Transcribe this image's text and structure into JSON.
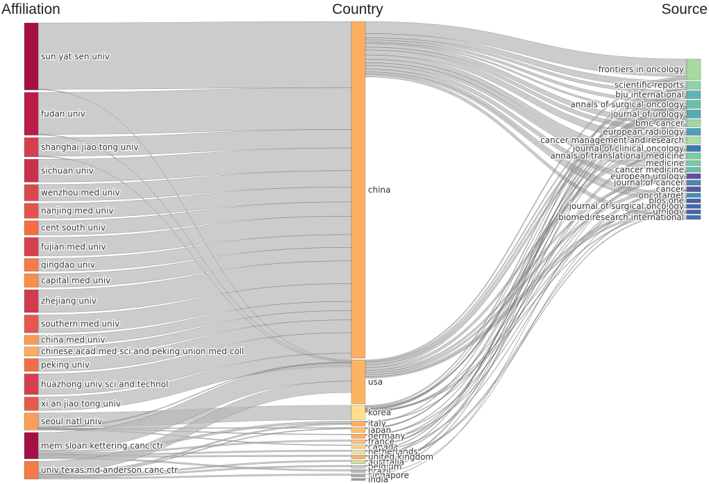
{
  "chart_data": {
    "type": "sankey",
    "columns": [
      "Affiliation",
      "Country",
      "Source"
    ],
    "link_color": "#c4c4c4",
    "affiliations": [
      {
        "name": "sun yat sen univ",
        "value": 94,
        "color": "#a50f44"
      },
      {
        "name": "fudan univ",
        "value": 60,
        "color": "#ba1b48"
      },
      {
        "name": "shanghai jiao tong univ",
        "value": 27,
        "color": "#d53e4f"
      },
      {
        "name": "sichuan univ",
        "value": 32,
        "color": "#c9304a"
      },
      {
        "name": "wenzhou med univ",
        "value": 23,
        "color": "#dc474c"
      },
      {
        "name": "nanjing med univ",
        "value": 21,
        "color": "#e0544c"
      },
      {
        "name": "cent south univ",
        "value": 20,
        "color": "#f46d43"
      },
      {
        "name": "fujian med univ",
        "value": 26,
        "color": "#d8404e"
      },
      {
        "name": "qingdao univ",
        "value": 18,
        "color": "#f67b47"
      },
      {
        "name": "capital med univ",
        "value": 19,
        "color": "#f88e4c"
      },
      {
        "name": "zhejiang univ",
        "value": 32,
        "color": "#d23a4e"
      },
      {
        "name": "southern med univ",
        "value": 25,
        "color": "#e55750"
      },
      {
        "name": "china med univ",
        "value": 13,
        "color": "#fa9b58"
      },
      {
        "name": "chinese acad med sci and peking union med coll",
        "value": 13,
        "color": "#fbae61"
      },
      {
        "name": "peking univ",
        "value": 18,
        "color": "#f46d43"
      },
      {
        "name": "huazhong univ sci and technol",
        "value": 29,
        "color": "#d53e4f"
      },
      {
        "name": "xi an jiao tong univ",
        "value": 19,
        "color": "#ea5a48"
      },
      {
        "name": "seoul natl univ",
        "value": 24,
        "color": "#fc9e5a"
      },
      {
        "name": "mem sloan kettering canc ctr",
        "value": 37,
        "color": "#a50f44"
      },
      {
        "name": "univ texas md anderson canc ctr",
        "value": 25,
        "color": "#f57a45"
      }
    ],
    "countries": [
      {
        "name": "china",
        "value": 474,
        "color": "#fdae61"
      },
      {
        "name": "usa",
        "value": 62,
        "color": "#fdb462"
      },
      {
        "name": "korea",
        "value": 20,
        "color": "#fee08b"
      },
      {
        "name": "italy",
        "value": 7,
        "color": "#fdae61"
      },
      {
        "name": "japan",
        "value": 7,
        "color": "#fdbf6f"
      },
      {
        "name": "germany",
        "value": 6,
        "color": "#fdae61"
      },
      {
        "name": "france",
        "value": 5,
        "color": "#fec173"
      },
      {
        "name": "canada",
        "value": 5,
        "color": "#fdd08a"
      },
      {
        "name": "netherlands",
        "value": 5,
        "color": "#e6e3a0"
      },
      {
        "name": "united kingdom",
        "value": 5,
        "color": "#fdae61"
      },
      {
        "name": "australia",
        "value": 5,
        "color": "#d9d9a0"
      },
      {
        "name": "belgium",
        "value": 4,
        "color": "#c8c8c8"
      },
      {
        "name": "brazil",
        "value": 4,
        "color": "#b5b5b5"
      },
      {
        "name": "singapore",
        "value": 4,
        "color": "#aaaaaa"
      },
      {
        "name": "india",
        "value": 3,
        "color": "#9e9e9e"
      }
    ],
    "sources": [
      {
        "name": "frontiers in oncology",
        "value": 20,
        "color": "#a6dba0"
      },
      {
        "name": "scientific reports",
        "value": 8,
        "color": "#8fd4a4"
      },
      {
        "name": "bju international",
        "value": 8,
        "color": "#5fb4b6"
      },
      {
        "name": "annals of surgical oncology",
        "value": 8,
        "color": "#66c2a5"
      },
      {
        "name": "journal of urology",
        "value": 8,
        "color": "#5aa9b8"
      },
      {
        "name": "bmc cancer",
        "value": 7,
        "color": "#9fd8a4"
      },
      {
        "name": "european radiology",
        "value": 7,
        "color": "#4f9dbb"
      },
      {
        "name": "cancer management and research",
        "value": 7,
        "color": "#abdda4"
      },
      {
        "name": "journal of clinical oncology",
        "value": 6,
        "color": "#3f78b5"
      },
      {
        "name": "annals of translational medicine",
        "value": 6,
        "color": "#7ccba4"
      },
      {
        "name": "medicine",
        "value": 5,
        "color": "#78c8a8"
      },
      {
        "name": "cancer medicine",
        "value": 5,
        "color": "#6dbda9"
      },
      {
        "name": "european urology",
        "value": 5,
        "color": "#5e4fa2"
      },
      {
        "name": "journal of cancer",
        "value": 5,
        "color": "#4a86b6"
      },
      {
        "name": "cancer",
        "value": 5,
        "color": "#5a57a2"
      },
      {
        "name": "oncotarget",
        "value": 4,
        "color": "#3f8fb8"
      },
      {
        "name": "plos one",
        "value": 4,
        "color": "#4f5fa6"
      },
      {
        "name": "journal of surgical oncology",
        "value": 4,
        "color": "#3b6bb0"
      },
      {
        "name": "urology",
        "value": 4,
        "color": "#4c63a8"
      },
      {
        "name": "biomed research international",
        "value": 4,
        "color": "#3c74b2"
      }
    ],
    "links_affiliation_country": [
      {
        "source": "sun yat sen univ",
        "target": "china",
        "value": 93
      },
      {
        "source": "sun yat sen univ",
        "target": "usa",
        "value": 1
      },
      {
        "source": "fudan univ",
        "target": "china",
        "value": 59
      },
      {
        "source": "fudan univ",
        "target": "usa",
        "value": 1
      },
      {
        "source": "shanghai jiao tong univ",
        "target": "china",
        "value": 26
      },
      {
        "source": "shanghai jiao tong univ",
        "target": "usa",
        "value": 1
      },
      {
        "source": "sichuan univ",
        "target": "china",
        "value": 32
      },
      {
        "source": "wenzhou med univ",
        "target": "china",
        "value": 23
      },
      {
        "source": "nanjing med univ",
        "target": "china",
        "value": 21
      },
      {
        "source": "cent south univ",
        "target": "china",
        "value": 20
      },
      {
        "source": "fujian med univ",
        "target": "china",
        "value": 26
      },
      {
        "source": "qingdao univ",
        "target": "china",
        "value": 18
      },
      {
        "source": "capital med univ",
        "target": "china",
        "value": 19
      },
      {
        "source": "zhejiang univ",
        "target": "china",
        "value": 32
      },
      {
        "source": "southern med univ",
        "target": "china",
        "value": 25
      },
      {
        "source": "china med univ",
        "target": "china",
        "value": 13
      },
      {
        "source": "chinese acad med sci and peking union med coll",
        "target": "china",
        "value": 13
      },
      {
        "source": "peking univ",
        "target": "china",
        "value": 18
      },
      {
        "source": "huazhong univ sci and technol",
        "target": "china",
        "value": 29
      },
      {
        "source": "xi an jiao tong univ",
        "target": "china",
        "value": 19
      },
      {
        "source": "seoul natl univ",
        "target": "korea",
        "value": 20
      },
      {
        "source": "seoul natl univ",
        "target": "usa",
        "value": 1
      },
      {
        "source": "seoul natl univ",
        "target": "japan",
        "value": 1
      },
      {
        "source": "seoul natl univ",
        "target": "germany",
        "value": 1
      },
      {
        "source": "seoul natl univ",
        "target": "canada",
        "value": 1
      },
      {
        "source": "mem sloan kettering canc ctr",
        "target": "usa",
        "value": 26
      },
      {
        "source": "mem sloan kettering canc ctr",
        "target": "italy",
        "value": 3
      },
      {
        "source": "mem sloan kettering canc ctr",
        "target": "france",
        "value": 2
      },
      {
        "source": "mem sloan kettering canc ctr",
        "target": "netherlands",
        "value": 2
      },
      {
        "source": "mem sloan kettering canc ctr",
        "target": "united kingdom",
        "value": 2
      },
      {
        "source": "mem sloan kettering canc ctr",
        "target": "brazil",
        "value": 2
      },
      {
        "source": "univ texas md anderson canc ctr",
        "target": "usa",
        "value": 16
      },
      {
        "source": "univ texas md anderson canc ctr",
        "target": "italy",
        "value": 2
      },
      {
        "source": "univ texas md anderson canc ctr",
        "target": "japan",
        "value": 1
      },
      {
        "source": "univ texas md anderson canc ctr",
        "target": "australia",
        "value": 2
      },
      {
        "source": "univ texas md anderson canc ctr",
        "target": "belgium",
        "value": 2
      },
      {
        "source": "univ texas md anderson canc ctr",
        "target": "singapore",
        "value": 2
      }
    ],
    "links_country_source": [
      {
        "source": "china",
        "target": "frontiers in oncology",
        "value": 17
      },
      {
        "source": "china",
        "target": "scientific reports",
        "value": 6
      },
      {
        "source": "china",
        "target": "bju international",
        "value": 3
      },
      {
        "source": "china",
        "target": "annals of surgical oncology",
        "value": 3
      },
      {
        "source": "china",
        "target": "journal of urology",
        "value": 2
      },
      {
        "source": "china",
        "target": "bmc cancer",
        "value": 5
      },
      {
        "source": "china",
        "target": "european radiology",
        "value": 4
      },
      {
        "source": "china",
        "target": "cancer management and research",
        "value": 7
      },
      {
        "source": "china",
        "target": "annals of translational medicine",
        "value": 6
      },
      {
        "source": "china",
        "target": "medicine",
        "value": 5
      },
      {
        "source": "china",
        "target": "cancer medicine",
        "value": 4
      },
      {
        "source": "china",
        "target": "journal of cancer",
        "value": 5
      },
      {
        "source": "china",
        "target": "oncotarget",
        "value": 4
      },
      {
        "source": "china",
        "target": "plos one",
        "value": 3
      },
      {
        "source": "china",
        "target": "biomed research international",
        "value": 4
      },
      {
        "source": "usa",
        "target": "frontiers in oncology",
        "value": 2
      },
      {
        "source": "usa",
        "target": "bju international",
        "value": 2
      },
      {
        "source": "usa",
        "target": "annals of surgical oncology",
        "value": 3
      },
      {
        "source": "usa",
        "target": "journal of urology",
        "value": 4
      },
      {
        "source": "usa",
        "target": "journal of clinical oncology",
        "value": 4
      },
      {
        "source": "usa",
        "target": "european urology",
        "value": 3
      },
      {
        "source": "usa",
        "target": "cancer",
        "value": 3
      },
      {
        "source": "usa",
        "target": "journal of surgical oncology",
        "value": 3
      },
      {
        "source": "usa",
        "target": "urology",
        "value": 2
      },
      {
        "source": "korea",
        "target": "scientific reports",
        "value": 2
      },
      {
        "source": "korea",
        "target": "european radiology",
        "value": 2
      },
      {
        "source": "korea",
        "target": "bmc cancer",
        "value": 1
      },
      {
        "source": "korea",
        "target": "bju international",
        "value": 1
      },
      {
        "source": "korea",
        "target": "journal of urology",
        "value": 1
      },
      {
        "source": "korea",
        "target": "plos one",
        "value": 1
      },
      {
        "source": "korea",
        "target": "urology",
        "value": 1
      },
      {
        "source": "korea",
        "target": "cancer medicine",
        "value": 1
      },
      {
        "source": "italy",
        "target": "european urology",
        "value": 1
      },
      {
        "source": "italy",
        "target": "bju international",
        "value": 1
      },
      {
        "source": "japan",
        "target": "journal of urology",
        "value": 1
      },
      {
        "source": "japan",
        "target": "annals of surgical oncology",
        "value": 1
      },
      {
        "source": "germany",
        "target": "european urology",
        "value": 1
      },
      {
        "source": "germany",
        "target": "bmc cancer",
        "value": 1
      },
      {
        "source": "france",
        "target": "cancer",
        "value": 1
      },
      {
        "source": "france",
        "target": "european radiology",
        "value": 1
      },
      {
        "source": "canada",
        "target": "journal of clinical oncology",
        "value": 1
      },
      {
        "source": "canada",
        "target": "annals of surgical oncology",
        "value": 1
      },
      {
        "source": "netherlands",
        "target": "bju international",
        "value": 1
      },
      {
        "source": "netherlands",
        "target": "cancer",
        "value": 1
      },
      {
        "source": "united kingdom",
        "target": "journal of clinical oncology",
        "value": 1
      },
      {
        "source": "united kingdom",
        "target": "frontiers in oncology",
        "value": 1
      },
      {
        "source": "australia",
        "target": "journal of surgical oncology",
        "value": 1
      },
      {
        "source": "australia",
        "target": "urology",
        "value": 1
      },
      {
        "source": "belgium",
        "target": "annals of surgical oncology",
        "value": 1
      },
      {
        "source": "belgium",
        "target": "scientific reports",
        "value": 0
      },
      {
        "source": "brazil",
        "target": "journal of urology",
        "value": 1
      },
      {
        "source": "singapore",
        "target": "oncotarget",
        "value": 0
      },
      {
        "source": "india",
        "target": "cancer medicine",
        "value": 0
      }
    ]
  }
}
